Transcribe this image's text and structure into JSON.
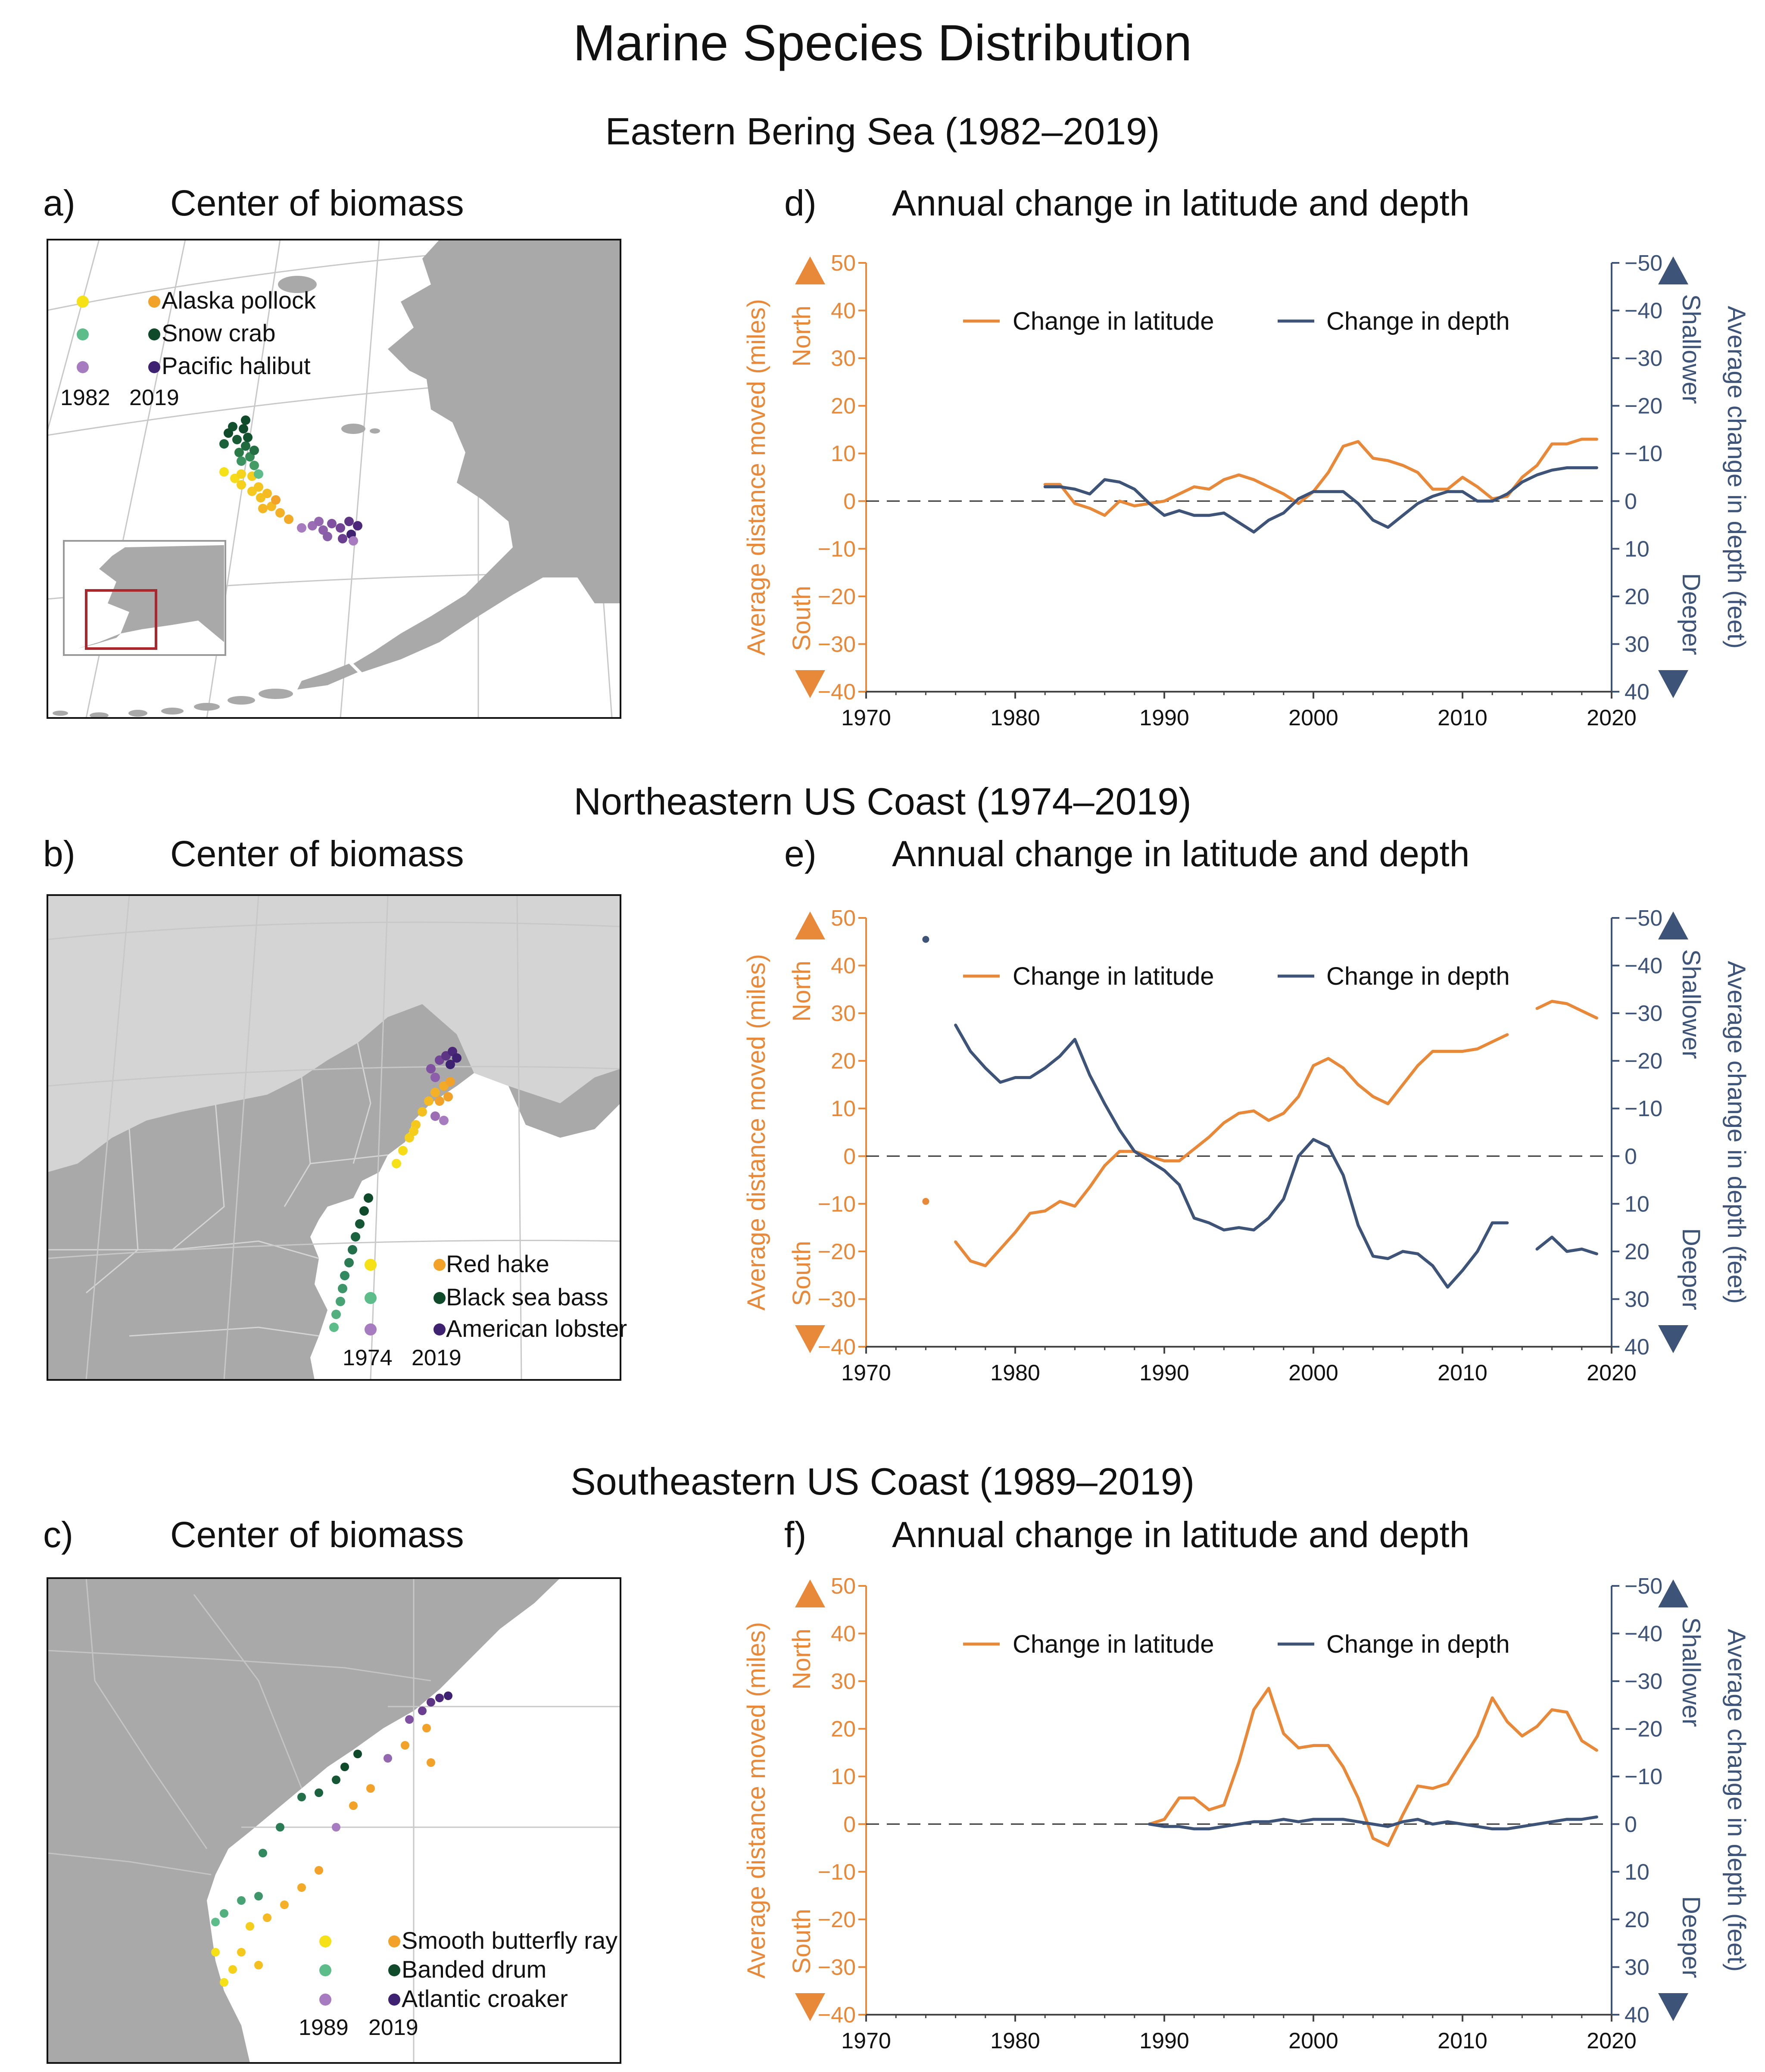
{
  "title": "Marine Species Distribution",
  "colors": {
    "latitude": "#e8893a",
    "depth": "#3d5478",
    "land": "#a9a9a9",
    "land_light": "#d4d4d4",
    "water": "#ffffff",
    "inset_box": "#a8282d"
  },
  "regions": [
    {
      "id": "bering",
      "title": "Eastern Bering Sea (1982–2019)",
      "map": {
        "letter": "a)",
        "heading": "Center of biomass",
        "legend": [
          {
            "name": "Alaska pollock",
            "c1": "#f6e016",
            "c2": "#f3a229"
          },
          {
            "name": "Snow crab",
            "c1": "#5dbd8a",
            "c2": "#0f4a2a"
          },
          {
            "name": "Pacific halibut",
            "c1": "#a77bc0",
            "c2": "#3e2170"
          }
        ],
        "year_start": "1982",
        "year_end": "2019"
      },
      "chart": {
        "letter": "d)",
        "heading": "Annual change in latitude and depth"
      }
    },
    {
      "id": "northeast",
      "title": "Northeastern US Coast (1974–2019)",
      "map": {
        "letter": "b)",
        "heading": "Center of biomass",
        "legend": [
          {
            "name": "Red hake",
            "c1": "#f6e016",
            "c2": "#f3a229"
          },
          {
            "name": "Black sea bass",
            "c1": "#5dbd8a",
            "c2": "#0f4a2a"
          },
          {
            "name": "American lobster",
            "c1": "#a77bc0",
            "c2": "#3e2170"
          }
        ],
        "year_start": "1974",
        "year_end": "2019"
      },
      "chart": {
        "letter": "e)",
        "heading": "Annual change in latitude and depth"
      }
    },
    {
      "id": "southeast",
      "title": "Southeastern US Coast (1989–2019)",
      "map": {
        "letter": "c)",
        "heading": "Center of biomass",
        "legend": [
          {
            "name": "Smooth butterfly ray",
            "c1": "#f6e016",
            "c2": "#f3a229"
          },
          {
            "name": "Banded drum",
            "c1": "#5dbd8a",
            "c2": "#0f4a2a"
          },
          {
            "name": "Atlantic croaker",
            "c1": "#a77bc0",
            "c2": "#3e2170"
          }
        ],
        "year_start": "1989",
        "year_end": "2019"
      },
      "chart": {
        "letter": "f)",
        "heading": "Annual change in latitude and depth"
      }
    }
  ],
  "chart_data": [
    {
      "type": "line",
      "panel": "d)",
      "title": "Annual change in latitude and depth",
      "xlim": [
        1970,
        2020
      ],
      "xticks": [
        1970,
        1980,
        1990,
        2000,
        2010,
        2020
      ],
      "ylim_left": [
        -40,
        50
      ],
      "ylim_right": [
        40,
        -50
      ],
      "yticks_left": [
        -40,
        -30,
        -20,
        -10,
        0,
        10,
        20,
        30,
        40,
        50
      ],
      "yticks_right": [
        40,
        30,
        20,
        10,
        0,
        -10,
        -20,
        -30,
        -40,
        -50
      ],
      "ylabel_left": "Average distance moved (miles)",
      "ylabel_right": "Average change in depth (feet)",
      "north_label": "North",
      "south_label": "South",
      "shallower_label": "Shallower",
      "deeper_label": "Deeper",
      "legend_placement": "top",
      "series": [
        {
          "name": "Change in latitude",
          "axis": "left",
          "x": [
            1982,
            1983,
            1984,
            1985,
            1986,
            1987,
            1988,
            1989,
            1990,
            1991,
            1992,
            1993,
            1994,
            1995,
            1996,
            1997,
            1998,
            1999,
            2000,
            2001,
            2002,
            2003,
            2004,
            2005,
            2006,
            2007,
            2008,
            2009,
            2010,
            2011,
            2012,
            2013,
            2014,
            2015,
            2016,
            2017,
            2018,
            2019
          ],
          "y": [
            3.5,
            3.5,
            -0.5,
            -1.5,
            -3,
            0,
            -1,
            -0.5,
            0,
            1.5,
            3,
            2.5,
            4.5,
            5.5,
            4.5,
            3,
            1.5,
            -0.5,
            2,
            6,
            11.5,
            12.5,
            9,
            8.5,
            7.5,
            6,
            2.5,
            2.5,
            5,
            3,
            0.5,
            1,
            5,
            7.5,
            12,
            12,
            13,
            13
          ]
        },
        {
          "name": "Change in depth",
          "axis": "right",
          "x": [
            1982,
            1983,
            1984,
            1985,
            1986,
            1987,
            1988,
            1989,
            1990,
            1991,
            1992,
            1993,
            1994,
            1995,
            1996,
            1997,
            1998,
            1999,
            2000,
            2001,
            2002,
            2003,
            2004,
            2005,
            2006,
            2007,
            2008,
            2009,
            2010,
            2011,
            2012,
            2013,
            2014,
            2015,
            2016,
            2017,
            2018,
            2019
          ],
          "y": [
            -3,
            -3,
            -2.5,
            -1.5,
            -4.5,
            -4,
            -2.5,
            0.5,
            3,
            2,
            3,
            3,
            2.5,
            4.5,
            6.5,
            4,
            2.5,
            -0.5,
            -2,
            -2,
            -2,
            0.5,
            4,
            5.5,
            3,
            0.5,
            -1,
            -2,
            -2,
            0,
            0,
            -1.5,
            -4,
            -5.5,
            -6.5,
            -7,
            -7,
            -7
          ]
        }
      ]
    },
    {
      "type": "line",
      "panel": "e)",
      "title": "Annual change in latitude and depth",
      "xlim": [
        1970,
        2020
      ],
      "xticks": [
        1970,
        1980,
        1990,
        2000,
        2010,
        2020
      ],
      "ylim_left": [
        -40,
        50
      ],
      "ylim_right": [
        40,
        -50
      ],
      "yticks_left": [
        -40,
        -30,
        -20,
        -10,
        0,
        10,
        20,
        30,
        40,
        50
      ],
      "yticks_right": [
        40,
        30,
        20,
        10,
        0,
        -10,
        -20,
        -30,
        -40,
        -50
      ],
      "ylabel_left": "Average distance moved (miles)",
      "ylabel_right": "Average change in depth (feet)",
      "north_label": "North",
      "south_label": "South",
      "shallower_label": "Shallower",
      "deeper_label": "Deeper",
      "legend_placement": "top",
      "series": [
        {
          "name": "Change in latitude",
          "axis": "left",
          "x": [
            1974,
            1975,
            1976,
            1977,
            1978,
            1979,
            1980,
            1981,
            1982,
            1983,
            1984,
            1985,
            1986,
            1987,
            1988,
            1989,
            1990,
            1991,
            1992,
            1993,
            1994,
            1995,
            1996,
            1997,
            1998,
            1999,
            2000,
            2001,
            2002,
            2003,
            2004,
            2005,
            2006,
            2007,
            2008,
            2009,
            2010,
            2011,
            2012,
            2013,
            2014,
            2015,
            2016,
            2017,
            2018,
            2019
          ],
          "y": [
            -9.5,
            null,
            -18,
            -22,
            -23,
            -19.5,
            -16,
            -12,
            -11.5,
            -9.5,
            -10.5,
            -6.5,
            -2,
            1,
            1,
            0,
            -1,
            -1,
            1.5,
            4,
            7,
            9,
            9.5,
            7.5,
            9,
            12.5,
            19,
            20.5,
            18.5,
            15,
            12.5,
            11,
            15,
            19,
            22,
            22,
            22,
            22.5,
            24,
            25.5,
            null,
            31,
            32.5,
            32,
            30.5,
            29
          ]
        },
        {
          "name": "Change in depth",
          "axis": "right",
          "x": [
            1974,
            1975,
            1976,
            1977,
            1978,
            1979,
            1980,
            1981,
            1982,
            1983,
            1984,
            1985,
            1986,
            1987,
            1988,
            1989,
            1990,
            1991,
            1992,
            1993,
            1994,
            1995,
            1996,
            1997,
            1998,
            1999,
            2000,
            2001,
            2002,
            2003,
            2004,
            2005,
            2006,
            2007,
            2008,
            2009,
            2010,
            2011,
            2012,
            2013,
            2014,
            2015,
            2016,
            2017,
            2018,
            2019
          ],
          "y": [
            -45.5,
            null,
            -27.5,
            -22,
            -18.5,
            -15.5,
            -16.5,
            -16.5,
            -18.5,
            -21,
            -24.5,
            -17,
            -11,
            -5.5,
            -1,
            1,
            3,
            6,
            13,
            14,
            15.5,
            15,
            15.5,
            13,
            9,
            0,
            -3.5,
            -2,
            4,
            14.5,
            21,
            21.5,
            20,
            20.5,
            23,
            27.5,
            24,
            20,
            14,
            14,
            null,
            19.5,
            17,
            20,
            19.5,
            20.5
          ]
        }
      ]
    },
    {
      "type": "line",
      "panel": "f)",
      "title": "Annual change in latitude and depth",
      "xlim": [
        1970,
        2020
      ],
      "xticks": [
        1970,
        1980,
        1990,
        2000,
        2010,
        2020
      ],
      "ylim_left": [
        -40,
        50
      ],
      "ylim_right": [
        40,
        -50
      ],
      "yticks_left": [
        -40,
        -30,
        -20,
        -10,
        0,
        10,
        20,
        30,
        40,
        50
      ],
      "yticks_right": [
        40,
        30,
        20,
        10,
        0,
        -10,
        -20,
        -30,
        -40,
        -50
      ],
      "ylabel_left": "Average distance moved (miles)",
      "ylabel_right": "Average change in depth (feet)",
      "north_label": "North",
      "south_label": "South",
      "shallower_label": "Shallower",
      "deeper_label": "Deeper",
      "legend_placement": "top",
      "series": [
        {
          "name": "Change in latitude",
          "axis": "left",
          "x": [
            1989,
            1990,
            1991,
            1992,
            1993,
            1994,
            1995,
            1996,
            1997,
            1998,
            1999,
            2000,
            2001,
            2002,
            2003,
            2004,
            2005,
            2006,
            2007,
            2008,
            2009,
            2010,
            2011,
            2012,
            2013,
            2014,
            2015,
            2016,
            2017,
            2018,
            2019
          ],
          "y": [
            0,
            1,
            5.5,
            5.5,
            3,
            4,
            13,
            24,
            28.5,
            19,
            16,
            16.5,
            16.5,
            12,
            5.5,
            -3,
            -4.5,
            2,
            8,
            7.5,
            8.5,
            13.5,
            18.5,
            26.5,
            21.5,
            18.5,
            20.5,
            24,
            23.5,
            17.5,
            15.5
          ]
        },
        {
          "name": "Change in depth",
          "axis": "right",
          "x": [
            1989,
            1990,
            1991,
            1992,
            1993,
            1994,
            1995,
            1996,
            1997,
            1998,
            1999,
            2000,
            2001,
            2002,
            2003,
            2004,
            2005,
            2006,
            2007,
            2008,
            2009,
            2010,
            2011,
            2012,
            2013,
            2014,
            2015,
            2016,
            2017,
            2018,
            2019
          ],
          "y": [
            0,
            0.5,
            0.5,
            1,
            1,
            0.5,
            0,
            -0.5,
            -0.5,
            -1,
            -0.5,
            -1,
            -1,
            -1,
            -0.5,
            0,
            0.5,
            -0.5,
            -1,
            0,
            -0.5,
            0,
            0.5,
            1,
            1,
            0.5,
            0,
            -0.5,
            -1,
            -1,
            -1.5
          ]
        }
      ]
    }
  ]
}
